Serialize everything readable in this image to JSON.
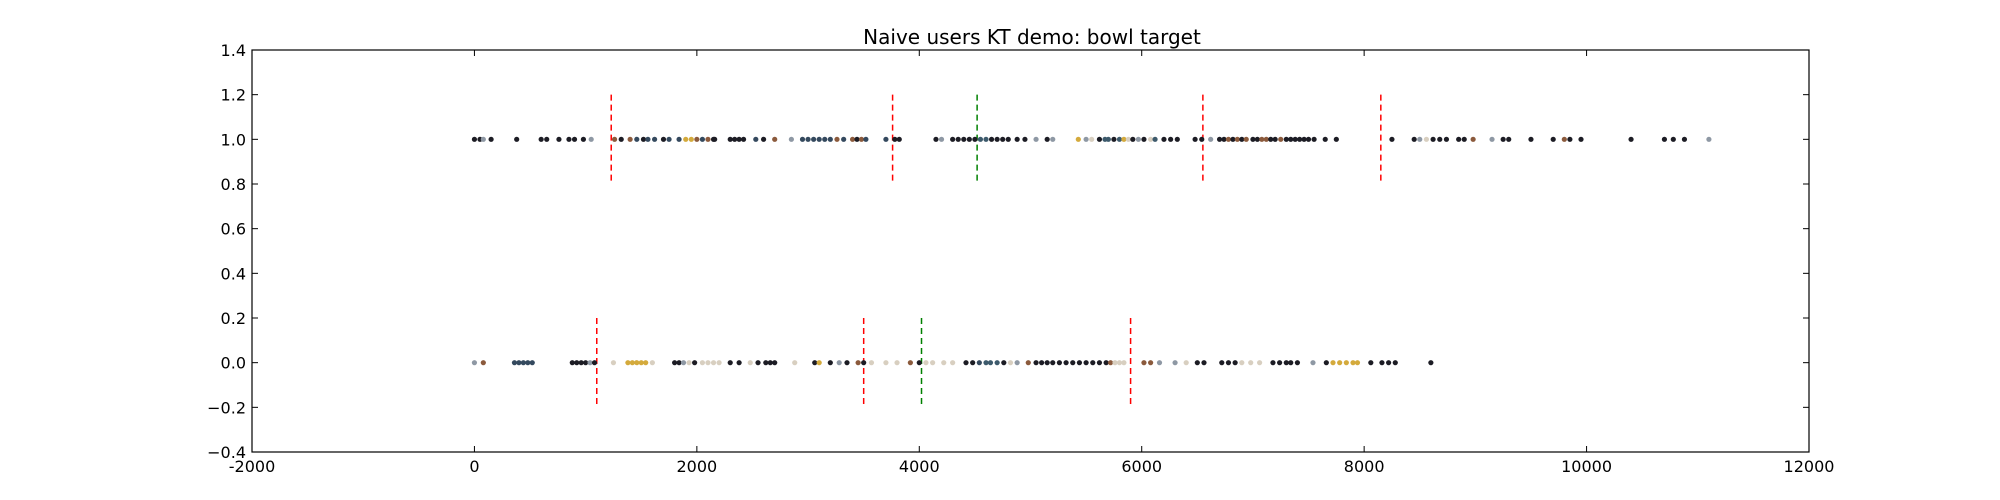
{
  "chart_data": {
    "type": "scatter",
    "title": "Naive users KT demo: bowl target",
    "xlabel": "",
    "ylabel": "",
    "xlim": [
      -2000,
      12000
    ],
    "ylim": [
      -0.4,
      1.4
    ],
    "xticks": [
      -2000,
      0,
      2000,
      4000,
      6000,
      8000,
      10000,
      12000
    ],
    "yticks": [
      -0.4,
      -0.2,
      0.0,
      0.2,
      0.4,
      0.6,
      0.8,
      1.0,
      1.2,
      1.4
    ],
    "grid": false,
    "colors": {
      "dark": "#1c1c24",
      "navy": "#34495e",
      "tan": "#d8cfc0",
      "gold": "#d4aa3c",
      "brown": "#8b5a3c",
      "grey": "#8e98a4",
      "slate": "#3d5a6c",
      "red_line": "#ff0000",
      "green_line": "#008000"
    },
    "series": [
      {
        "y": 1.0,
        "points": [
          [
            0,
            "dark"
          ],
          [
            50,
            "dark"
          ],
          [
            80,
            "grey"
          ],
          [
            150,
            "dark"
          ],
          [
            380,
            "dark"
          ],
          [
            600,
            "dark"
          ],
          [
            650,
            "dark"
          ],
          [
            760,
            "dark"
          ],
          [
            850,
            "dark"
          ],
          [
            900,
            "dark"
          ],
          [
            980,
            "dark"
          ],
          [
            1050,
            "grey"
          ],
          [
            1260,
            "brown"
          ],
          [
            1320,
            "dark"
          ],
          [
            1400,
            "brown"
          ],
          [
            1460,
            "navy"
          ],
          [
            1520,
            "dark"
          ],
          [
            1560,
            "navy"
          ],
          [
            1620,
            "navy"
          ],
          [
            1700,
            "dark"
          ],
          [
            1750,
            "navy"
          ],
          [
            1840,
            "navy"
          ],
          [
            1900,
            "gold"
          ],
          [
            1950,
            "gold"
          ],
          [
            2000,
            "brown"
          ],
          [
            2050,
            "navy"
          ],
          [
            2100,
            "brown"
          ],
          [
            2150,
            "dark"
          ],
          [
            2160,
            "dark"
          ],
          [
            2300,
            "dark"
          ],
          [
            2340,
            "dark"
          ],
          [
            2380,
            "dark"
          ],
          [
            2420,
            "dark"
          ],
          [
            2530,
            "navy"
          ],
          [
            2600,
            "dark"
          ],
          [
            2700,
            "brown"
          ],
          [
            2850,
            "grey"
          ],
          [
            2950,
            "navy"
          ],
          [
            3000,
            "navy"
          ],
          [
            3050,
            "navy"
          ],
          [
            3100,
            "navy"
          ],
          [
            3150,
            "navy"
          ],
          [
            3200,
            "navy"
          ],
          [
            3260,
            "brown"
          ],
          [
            3320,
            "navy"
          ],
          [
            3400,
            "brown"
          ],
          [
            3440,
            "dark"
          ],
          [
            3480,
            "brown"
          ],
          [
            3520,
            "navy"
          ],
          [
            3700,
            "navy"
          ],
          [
            3780,
            "dark"
          ],
          [
            3820,
            "dark"
          ],
          [
            4150,
            "dark"
          ],
          [
            4200,
            "grey"
          ],
          [
            4300,
            "dark"
          ],
          [
            4350,
            "dark"
          ],
          [
            4400,
            "dark"
          ],
          [
            4450,
            "dark"
          ],
          [
            4500,
            "dark"
          ],
          [
            4550,
            "slate"
          ],
          [
            4600,
            "slate"
          ],
          [
            4650,
            "dark"
          ],
          [
            4700,
            "dark"
          ],
          [
            4750,
            "dark"
          ],
          [
            4800,
            "dark"
          ],
          [
            4880,
            "dark"
          ],
          [
            4950,
            "dark"
          ],
          [
            5050,
            "grey"
          ],
          [
            5150,
            "dark"
          ],
          [
            5200,
            "grey"
          ],
          [
            5430,
            "gold"
          ],
          [
            5500,
            "grey"
          ],
          [
            5550,
            "tan"
          ],
          [
            5620,
            "dark"
          ],
          [
            5670,
            "slate"
          ],
          [
            5700,
            "slate"
          ],
          [
            5750,
            "dark"
          ],
          [
            5800,
            "slate"
          ],
          [
            5840,
            "gold"
          ],
          [
            5880,
            "tan"
          ],
          [
            5920,
            "dark"
          ],
          [
            5970,
            "grey"
          ],
          [
            6020,
            "dark"
          ],
          [
            6080,
            "tan"
          ],
          [
            6120,
            "slate"
          ],
          [
            6200,
            "dark"
          ],
          [
            6260,
            "dark"
          ],
          [
            6320,
            "dark"
          ],
          [
            6480,
            "dark"
          ],
          [
            6540,
            "dark"
          ],
          [
            6620,
            "grey"
          ],
          [
            6700,
            "dark"
          ],
          [
            6740,
            "dark"
          ],
          [
            6780,
            "brown"
          ],
          [
            6820,
            "dark"
          ],
          [
            6860,
            "brown"
          ],
          [
            6900,
            "dark"
          ],
          [
            6940,
            "brown"
          ],
          [
            7000,
            "dark"
          ],
          [
            7040,
            "dark"
          ],
          [
            7080,
            "brown"
          ],
          [
            7120,
            "brown"
          ],
          [
            7160,
            "dark"
          ],
          [
            7200,
            "dark"
          ],
          [
            7250,
            "brown"
          ],
          [
            7300,
            "dark"
          ],
          [
            7340,
            "dark"
          ],
          [
            7380,
            "dark"
          ],
          [
            7420,
            "dark"
          ],
          [
            7460,
            "dark"
          ],
          [
            7500,
            "dark"
          ],
          [
            7550,
            "dark"
          ],
          [
            7650,
            "dark"
          ],
          [
            7750,
            "dark"
          ],
          [
            8250,
            "dark"
          ],
          [
            8450,
            "dark"
          ],
          [
            8500,
            "grey"
          ],
          [
            8560,
            "tan"
          ],
          [
            8620,
            "dark"
          ],
          [
            8680,
            "dark"
          ],
          [
            8740,
            "dark"
          ],
          [
            8850,
            "dark"
          ],
          [
            8900,
            "dark"
          ],
          [
            8980,
            "brown"
          ],
          [
            9150,
            "grey"
          ],
          [
            9250,
            "dark"
          ],
          [
            9300,
            "dark"
          ],
          [
            9500,
            "dark"
          ],
          [
            9700,
            "dark"
          ],
          [
            9800,
            "brown"
          ],
          [
            9850,
            "dark"
          ],
          [
            9950,
            "dark"
          ],
          [
            10400,
            "dark"
          ],
          [
            10700,
            "dark"
          ],
          [
            10780,
            "dark"
          ],
          [
            10880,
            "dark"
          ],
          [
            11100,
            "grey"
          ]
        ],
        "red_lines": [
          1230,
          3760,
          6550,
          8150
        ],
        "green_line": 4520
      },
      {
        "y": 0.0,
        "points": [
          [
            0,
            "grey"
          ],
          [
            80,
            "brown"
          ],
          [
            360,
            "navy"
          ],
          [
            400,
            "navy"
          ],
          [
            440,
            "navy"
          ],
          [
            480,
            "navy"
          ],
          [
            520,
            "navy"
          ],
          [
            880,
            "dark"
          ],
          [
            920,
            "dark"
          ],
          [
            960,
            "dark"
          ],
          [
            1000,
            "dark"
          ],
          [
            1040,
            "grey"
          ],
          [
            1080,
            "dark"
          ],
          [
            1250,
            "tan"
          ],
          [
            1380,
            "gold"
          ],
          [
            1420,
            "gold"
          ],
          [
            1460,
            "gold"
          ],
          [
            1500,
            "gold"
          ],
          [
            1540,
            "gold"
          ],
          [
            1600,
            "tan"
          ],
          [
            1800,
            "dark"
          ],
          [
            1840,
            "dark"
          ],
          [
            1880,
            "grey"
          ],
          [
            1930,
            "tan"
          ],
          [
            1980,
            "dark"
          ],
          [
            2050,
            "tan"
          ],
          [
            2100,
            "tan"
          ],
          [
            2150,
            "tan"
          ],
          [
            2200,
            "tan"
          ],
          [
            2300,
            "dark"
          ],
          [
            2380,
            "dark"
          ],
          [
            2480,
            "tan"
          ],
          [
            2550,
            "dark"
          ],
          [
            2620,
            "dark"
          ],
          [
            2660,
            "dark"
          ],
          [
            2700,
            "dark"
          ],
          [
            2880,
            "tan"
          ],
          [
            3060,
            "dark"
          ],
          [
            3100,
            "gold"
          ],
          [
            3200,
            "dark"
          ],
          [
            3280,
            "grey"
          ],
          [
            3350,
            "dark"
          ],
          [
            3450,
            "brown"
          ],
          [
            3500,
            "dark"
          ],
          [
            3570,
            "tan"
          ],
          [
            3700,
            "tan"
          ],
          [
            3800,
            "tan"
          ],
          [
            3920,
            "brown"
          ],
          [
            4000,
            "dark"
          ],
          [
            4060,
            "tan"
          ],
          [
            4120,
            "tan"
          ],
          [
            4220,
            "tan"
          ],
          [
            4300,
            "tan"
          ],
          [
            4420,
            "dark"
          ],
          [
            4480,
            "dark"
          ],
          [
            4540,
            "navy"
          ],
          [
            4600,
            "slate"
          ],
          [
            4640,
            "slate"
          ],
          [
            4700,
            "slate"
          ],
          [
            4760,
            "dark"
          ],
          [
            4820,
            "tan"
          ],
          [
            4880,
            "grey"
          ],
          [
            4980,
            "brown"
          ],
          [
            5050,
            "dark"
          ],
          [
            5100,
            "dark"
          ],
          [
            5150,
            "dark"
          ],
          [
            5200,
            "dark"
          ],
          [
            5260,
            "dark"
          ],
          [
            5320,
            "dark"
          ],
          [
            5380,
            "dark"
          ],
          [
            5440,
            "dark"
          ],
          [
            5500,
            "dark"
          ],
          [
            5560,
            "dark"
          ],
          [
            5620,
            "dark"
          ],
          [
            5680,
            "dark"
          ],
          [
            5720,
            "brown"
          ],
          [
            5760,
            "tan"
          ],
          [
            5800,
            "tan"
          ],
          [
            5840,
            "tan"
          ],
          [
            6020,
            "brown"
          ],
          [
            6080,
            "brown"
          ],
          [
            6160,
            "grey"
          ],
          [
            6300,
            "grey"
          ],
          [
            6400,
            "tan"
          ],
          [
            6500,
            "dark"
          ],
          [
            6560,
            "dark"
          ],
          [
            6720,
            "dark"
          ],
          [
            6780,
            "dark"
          ],
          [
            6840,
            "dark"
          ],
          [
            6900,
            "tan"
          ],
          [
            6980,
            "tan"
          ],
          [
            7060,
            "tan"
          ],
          [
            7180,
            "dark"
          ],
          [
            7240,
            "dark"
          ],
          [
            7300,
            "dark"
          ],
          [
            7340,
            "dark"
          ],
          [
            7400,
            "dark"
          ],
          [
            7540,
            "grey"
          ],
          [
            7660,
            "dark"
          ],
          [
            7720,
            "gold"
          ],
          [
            7780,
            "gold"
          ],
          [
            7840,
            "gold"
          ],
          [
            7900,
            "gold"
          ],
          [
            7940,
            "gold"
          ],
          [
            8060,
            "dark"
          ],
          [
            8160,
            "dark"
          ],
          [
            8220,
            "dark"
          ],
          [
            8280,
            "dark"
          ],
          [
            8600,
            "dark"
          ]
        ],
        "red_lines": [
          1100,
          3500,
          5900
        ],
        "green_line": 4020
      }
    ]
  }
}
